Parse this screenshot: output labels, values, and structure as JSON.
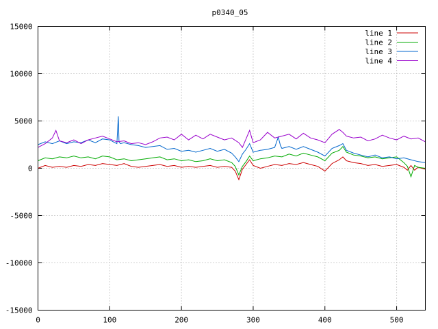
{
  "chart_data": {
    "type": "line",
    "title": "p0340_05",
    "xlabel": "",
    "ylabel": "",
    "xlim": [
      0,
      540
    ],
    "ylim": [
      -15000,
      15000
    ],
    "xticks": [
      0,
      100,
      200,
      300,
      400,
      500
    ],
    "yticks": [
      -15000,
      -10000,
      -5000,
      0,
      5000,
      10000,
      15000
    ],
    "grid": true,
    "legend_position": "top-right",
    "series": [
      {
        "name": "line 1",
        "color": "#cc0000",
        "x": [
          0,
          10,
          20,
          30,
          40,
          50,
          60,
          70,
          80,
          90,
          100,
          110,
          120,
          130,
          140,
          150,
          160,
          170,
          180,
          190,
          200,
          210,
          220,
          230,
          240,
          250,
          260,
          270,
          275,
          280,
          285,
          290,
          295,
          300,
          310,
          320,
          330,
          340,
          350,
          360,
          370,
          380,
          390,
          400,
          410,
          420,
          425,
          430,
          440,
          450,
          460,
          470,
          480,
          490,
          500,
          510,
          515,
          520,
          525,
          530,
          540
        ],
        "y": [
          0,
          300,
          100,
          200,
          100,
          300,
          200,
          400,
          300,
          500,
          400,
          300,
          500,
          200,
          100,
          200,
          300,
          400,
          200,
          300,
          100,
          200,
          100,
          200,
          300,
          100,
          200,
          100,
          -300,
          -1200,
          -100,
          400,
          900,
          300,
          0,
          200,
          400,
          300,
          500,
          400,
          600,
          400,
          200,
          -300,
          500,
          900,
          1200,
          800,
          600,
          500,
          300,
          400,
          200,
          300,
          400,
          100,
          -200,
          300,
          -200,
          100,
          -100
        ]
      },
      {
        "name": "line 2",
        "color": "#00aa00",
        "x": [
          0,
          10,
          20,
          30,
          40,
          50,
          60,
          70,
          80,
          90,
          100,
          110,
          120,
          130,
          140,
          150,
          160,
          170,
          180,
          190,
          200,
          210,
          220,
          230,
          240,
          250,
          260,
          270,
          275,
          280,
          285,
          290,
          295,
          300,
          310,
          320,
          330,
          340,
          350,
          360,
          370,
          380,
          390,
          400,
          410,
          420,
          425,
          430,
          440,
          450,
          460,
          470,
          480,
          490,
          500,
          510,
          515,
          520,
          525,
          530,
          540
        ],
        "y": [
          800,
          1100,
          1000,
          1200,
          1100,
          1300,
          1100,
          1200,
          1000,
          1300,
          1200,
          900,
          1000,
          800,
          900,
          1000,
          1100,
          1200,
          900,
          1000,
          800,
          900,
          700,
          800,
          1000,
          800,
          900,
          600,
          200,
          -700,
          200,
          700,
          1300,
          800,
          1000,
          1100,
          1300,
          1200,
          1500,
          1300,
          1600,
          1400,
          1200,
          800,
          1600,
          1900,
          2300,
          1700,
          1400,
          1300,
          1100,
          1200,
          1000,
          1100,
          1200,
          600,
          200,
          -900,
          300,
          100,
          0
        ]
      },
      {
        "name": "line 3",
        "color": "#0066cc",
        "x": [
          0,
          10,
          20,
          30,
          40,
          50,
          60,
          70,
          80,
          90,
          100,
          105,
          110,
          112,
          113,
          115,
          120,
          130,
          140,
          150,
          160,
          170,
          180,
          190,
          200,
          210,
          220,
          230,
          240,
          250,
          260,
          270,
          275,
          280,
          285,
          290,
          295,
          300,
          310,
          320,
          330,
          335,
          338,
          340,
          350,
          360,
          370,
          380,
          390,
          400,
          410,
          420,
          425,
          430,
          440,
          450,
          460,
          470,
          480,
          490,
          500,
          510,
          520,
          530,
          540
        ],
        "y": [
          2500,
          2800,
          2600,
          2900,
          2600,
          2800,
          2700,
          3000,
          2700,
          3100,
          3000,
          2800,
          2600,
          5500,
          2800,
          2600,
          2700,
          2500,
          2400,
          2200,
          2300,
          2400,
          2000,
          2100,
          1800,
          1900,
          1700,
          1900,
          2100,
          1800,
          2000,
          1600,
          1200,
          700,
          1500,
          2000,
          2600,
          1700,
          1900,
          2000,
          2200,
          3300,
          2400,
          2100,
          2300,
          2000,
          2300,
          2000,
          1700,
          1300,
          2100,
          2400,
          2600,
          1900,
          1600,
          1400,
          1200,
          1400,
          1100,
          1200,
          1000,
          1100,
          900,
          700,
          600
        ]
      },
      {
        "name": "line 4",
        "color": "#9900cc",
        "x": [
          0,
          10,
          20,
          25,
          30,
          40,
          50,
          60,
          70,
          80,
          90,
          100,
          110,
          120,
          130,
          140,
          150,
          160,
          170,
          180,
          190,
          200,
          210,
          220,
          230,
          240,
          250,
          260,
          270,
          280,
          285,
          290,
          295,
          300,
          310,
          320,
          330,
          340,
          350,
          360,
          370,
          380,
          390,
          400,
          410,
          420,
          425,
          430,
          440,
          450,
          460,
          470,
          480,
          490,
          500,
          510,
          520,
          530,
          540
        ],
        "y": [
          2200,
          2600,
          3200,
          4000,
          2900,
          2700,
          3000,
          2600,
          3000,
          3200,
          3400,
          3100,
          2800,
          2900,
          2600,
          2700,
          2500,
          2800,
          3200,
          3300,
          3000,
          3600,
          3000,
          3500,
          3100,
          3600,
          3300,
          3000,
          3200,
          2700,
          2200,
          3100,
          4000,
          2700,
          3000,
          3800,
          3200,
          3400,
          3600,
          3100,
          3700,
          3200,
          3000,
          2700,
          3600,
          4100,
          3800,
          3400,
          3200,
          3300,
          2900,
          3100,
          3500,
          3200,
          3000,
          3400,
          3100,
          3200,
          2800
        ]
      }
    ]
  }
}
